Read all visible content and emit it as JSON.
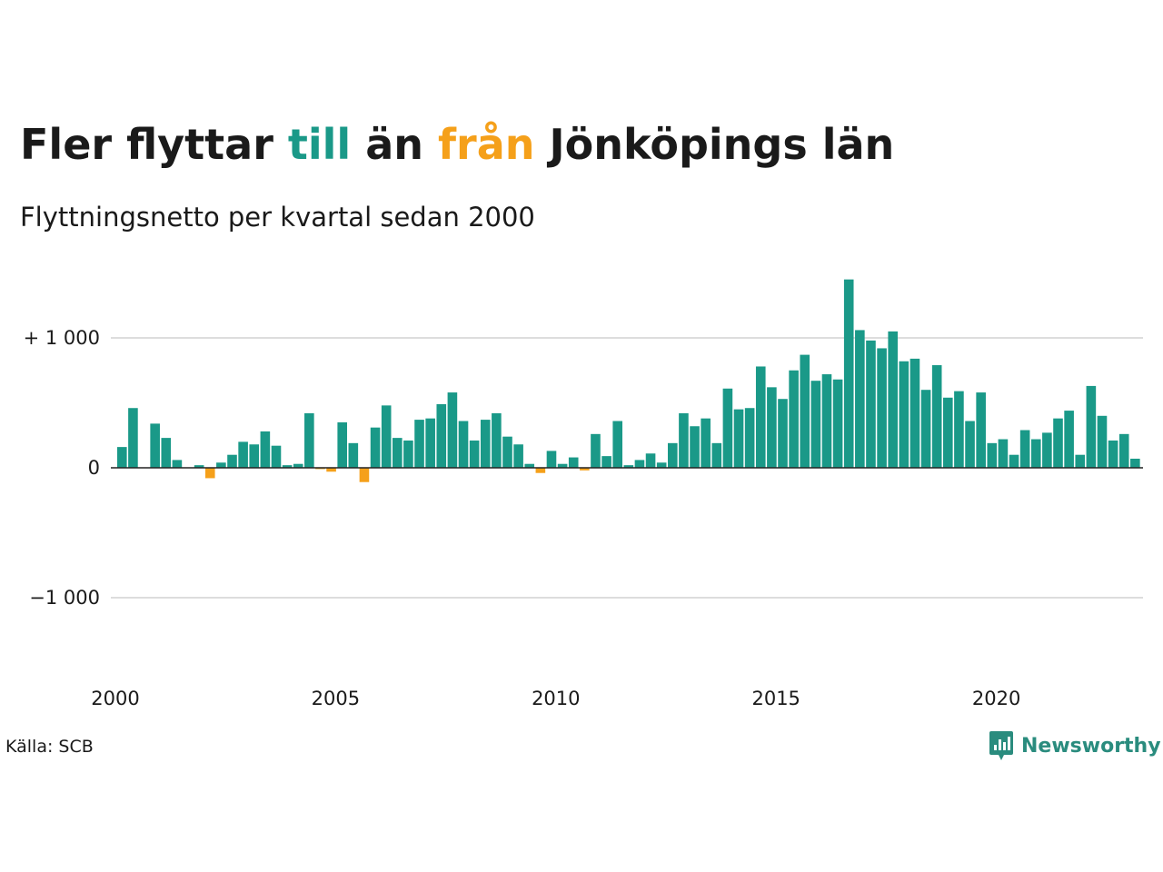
{
  "title": {
    "part1": "Fler flyttar ",
    "word_to": "till",
    "part2": " än ",
    "word_from": "från",
    "part3": " Jönköpings län"
  },
  "subtitle": "Flyttningsnetto per kvartal sedan 2000",
  "source": "Källa: SCB",
  "brand": {
    "name": "Newsworthy",
    "color": "#2a8c7e"
  },
  "colors": {
    "positive": "#1a9988",
    "negative": "#f5a01a",
    "title_positive": "#1a9988",
    "title_negative": "#f5a01a",
    "grid": "#dddddd",
    "baseline": "#222222"
  },
  "chart_data": {
    "type": "bar",
    "title": "Fler flyttar till än från Jönköpings län",
    "subtitle": "Flyttningsnetto per kvartal sedan 2000",
    "xlabel": "",
    "ylabel": "",
    "ylim": [
      -1600,
      1500
    ],
    "y_ticks": [
      {
        "value": 1000,
        "label": "+ 1 000"
      },
      {
        "value": 0,
        "label": "0"
      },
      {
        "value": -1000,
        "label": "−1 000"
      }
    ],
    "x_ticks": [
      "2000",
      "2005",
      "2010",
      "2015",
      "2020"
    ],
    "grid": true,
    "start": "2000 Q1",
    "frequency": "quarterly",
    "values": [
      160,
      460,
      0,
      340,
      230,
      60,
      0,
      20,
      -80,
      40,
      100,
      200,
      180,
      280,
      170,
      20,
      30,
      420,
      -10,
      -30,
      350,
      190,
      -110,
      310,
      480,
      230,
      210,
      370,
      380,
      490,
      580,
      360,
      210,
      370,
      420,
      240,
      180,
      30,
      -40,
      130,
      30,
      80,
      -20,
      260,
      90,
      360,
      20,
      60,
      110,
      40,
      190,
      420,
      320,
      380,
      190,
      610,
      450,
      460,
      780,
      620,
      530,
      750,
      870,
      670,
      720,
      680,
      1450,
      1060,
      980,
      920,
      1050,
      820,
      840,
      600,
      790,
      540,
      590,
      360,
      580,
      190,
      220,
      100,
      290,
      220,
      270,
      380,
      440,
      100,
      630,
      400,
      210,
      260,
      70
    ]
  }
}
